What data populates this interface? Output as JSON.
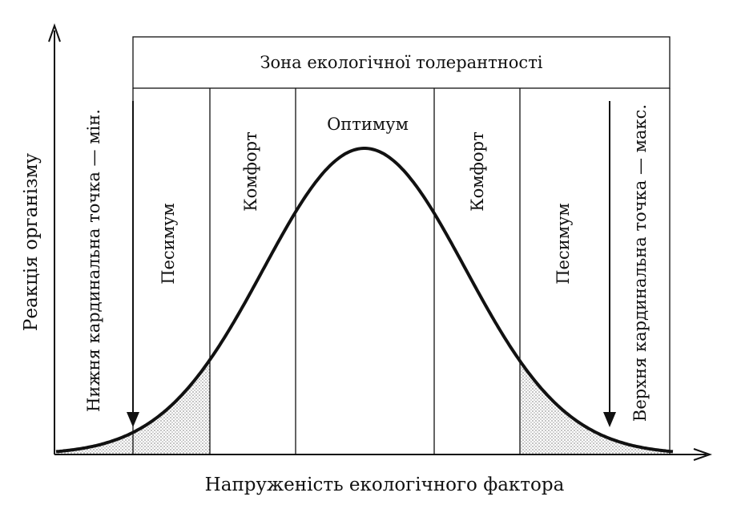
{
  "diagram": {
    "zone_title": "Зона екологічної толерантності",
    "y_axis_label": "Реакція організму",
    "x_axis_label": "Напруженість екологічного фактора",
    "zones": {
      "pessimum_left": "Песимум",
      "comfort_left": "Комфорт",
      "optimum": "Оптимум",
      "comfort_right": "Комфорт",
      "pessimum_right": "Песимум"
    },
    "lower_cardinal_point": "Нижня кардинальна точка — мін.",
    "upper_cardinal_point": "Верхня кардинальна точка — макс.",
    "colors": {
      "ink": "#111111",
      "shade": "#cfcfcf"
    }
  }
}
